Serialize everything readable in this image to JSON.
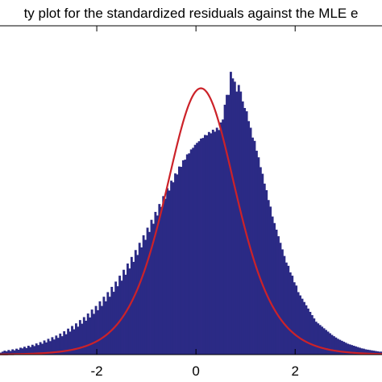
{
  "chart_data": {
    "type": "bar",
    "title": "ty plot for the standardized residuals against the MLE e",
    "xlabel": "",
    "ylabel": "",
    "xlim": [
      -4.0,
      3.8
    ],
    "ylim": [
      0,
      1.0
    ],
    "x_ticks": [
      {
        "value": -2,
        "label": "-2"
      },
      {
        "value": 0,
        "label": "0"
      },
      {
        "value": 2,
        "label": "2"
      }
    ],
    "bins": {
      "start": -4.0,
      "width": 0.04,
      "values": [
        0.008,
        0.006,
        0.009,
        0.012,
        0.01,
        0.014,
        0.011,
        0.016,
        0.013,
        0.018,
        0.015,
        0.021,
        0.019,
        0.024,
        0.02,
        0.027,
        0.023,
        0.03,
        0.026,
        0.034,
        0.029,
        0.038,
        0.033,
        0.043,
        0.037,
        0.048,
        0.041,
        0.053,
        0.046,
        0.058,
        0.051,
        0.064,
        0.056,
        0.071,
        0.062,
        0.079,
        0.07,
        0.087,
        0.077,
        0.095,
        0.085,
        0.105,
        0.094,
        0.114,
        0.103,
        0.125,
        0.113,
        0.137,
        0.124,
        0.148,
        0.135,
        0.162,
        0.148,
        0.176,
        0.162,
        0.19,
        0.176,
        0.206,
        0.191,
        0.222,
        0.208,
        0.24,
        0.225,
        0.258,
        0.243,
        0.277,
        0.262,
        0.297,
        0.282,
        0.318,
        0.303,
        0.34,
        0.326,
        0.363,
        0.349,
        0.386,
        0.373,
        0.41,
        0.398,
        0.434,
        0.423,
        0.458,
        0.449,
        0.482,
        0.474,
        0.506,
        0.499,
        0.529,
        0.524,
        0.551,
        0.548,
        0.572,
        0.571,
        0.591,
        0.593,
        0.609,
        0.612,
        0.624,
        0.629,
        0.638,
        0.644,
        0.649,
        0.657,
        0.659,
        0.668,
        0.667,
        0.677,
        0.673,
        0.684,
        0.678,
        0.69,
        0.683,
        0.706,
        0.715,
        0.76,
        0.79,
        0.79,
        0.86,
        0.84,
        0.83,
        0.8,
        0.82,
        0.8,
        0.77,
        0.75,
        0.74,
        0.71,
        0.69,
        0.66,
        0.65,
        0.62,
        0.6,
        0.57,
        0.55,
        0.52,
        0.5,
        0.47,
        0.45,
        0.42,
        0.4,
        0.38,
        0.36,
        0.34,
        0.32,
        0.3,
        0.28,
        0.27,
        0.25,
        0.24,
        0.22,
        0.21,
        0.19,
        0.18,
        0.17,
        0.16,
        0.15,
        0.14,
        0.13,
        0.12,
        0.11,
        0.1,
        0.095,
        0.09,
        0.085,
        0.08,
        0.075,
        0.07,
        0.065,
        0.06,
        0.056,
        0.052,
        0.048,
        0.045,
        0.042,
        0.039,
        0.036,
        0.033,
        0.031,
        0.029,
        0.027,
        0.025,
        0.023,
        0.021,
        0.019,
        0.018,
        0.016,
        0.015,
        0.014,
        0.013,
        0.012,
        0.011,
        0.01,
        0.009,
        0.009,
        0.008,
        0.008,
        0.007,
        0.007
      ]
    },
    "fit_curve": {
      "type": "line",
      "mu": 0.1,
      "scale": 0.82,
      "peak": 0.81,
      "color": "#cc2229"
    },
    "bar_color": "#2b2a85",
    "grid": false,
    "legend": "none"
  }
}
